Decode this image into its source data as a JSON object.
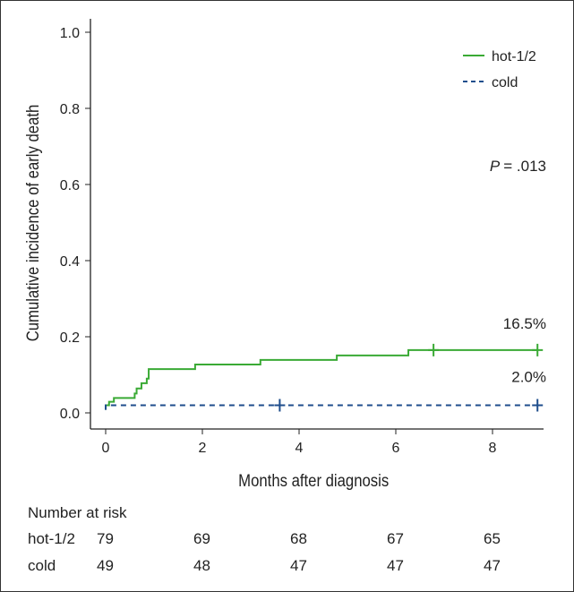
{
  "chart_data": {
    "type": "line",
    "title": "",
    "xlabel": "Months after diagnosis",
    "ylabel": "Cumulative incidence of early death",
    "xlim": [
      0,
      9
    ],
    "ylim": [
      0,
      1
    ],
    "xticks": [
      "0",
      "2",
      "4",
      "6",
      "8"
    ],
    "yticks": [
      "0.0",
      "0.2",
      "0.4",
      "0.6",
      "0.8",
      "1.0"
    ],
    "legend_position": "top-right",
    "series": [
      {
        "name": "hot-1/2",
        "color": "#3aaa35",
        "style": "solid",
        "steps": [
          [
            0,
            0.008
          ],
          [
            0.0,
            0.02
          ],
          [
            0.07,
            0.029
          ],
          [
            0.17,
            0.039
          ],
          [
            0.6,
            0.051
          ],
          [
            0.64,
            0.064
          ],
          [
            0.74,
            0.078
          ],
          [
            0.85,
            0.09
          ],
          [
            0.89,
            0.115
          ],
          [
            1.85,
            0.127
          ],
          [
            3.2,
            0.139
          ],
          [
            4.78,
            0.151
          ],
          [
            6.26,
            0.165
          ],
          [
            8.93,
            0.165
          ]
        ],
        "censored": [
          6.78,
          8.93
        ],
        "end_label": "16.5%"
      },
      {
        "name": "cold",
        "color": "#1f4e8c",
        "style": "dashed",
        "steps": [
          [
            0,
            0.008
          ],
          [
            0.0,
            0.02
          ],
          [
            8.93,
            0.02
          ]
        ],
        "censored": [
          3.6,
          8.93
        ],
        "end_label": "2.0%"
      }
    ],
    "annotation": {
      "p_label": "P",
      "p_value": "= .013"
    },
    "risk_table": {
      "title": "Number at risk",
      "rows": [
        {
          "label": "hot-1/2",
          "values": [
            "79",
            "69",
            "68",
            "67",
            "65"
          ]
        },
        {
          "label": "cold",
          "values": [
            "49",
            "48",
            "47",
            "47",
            "47"
          ]
        }
      ]
    }
  }
}
